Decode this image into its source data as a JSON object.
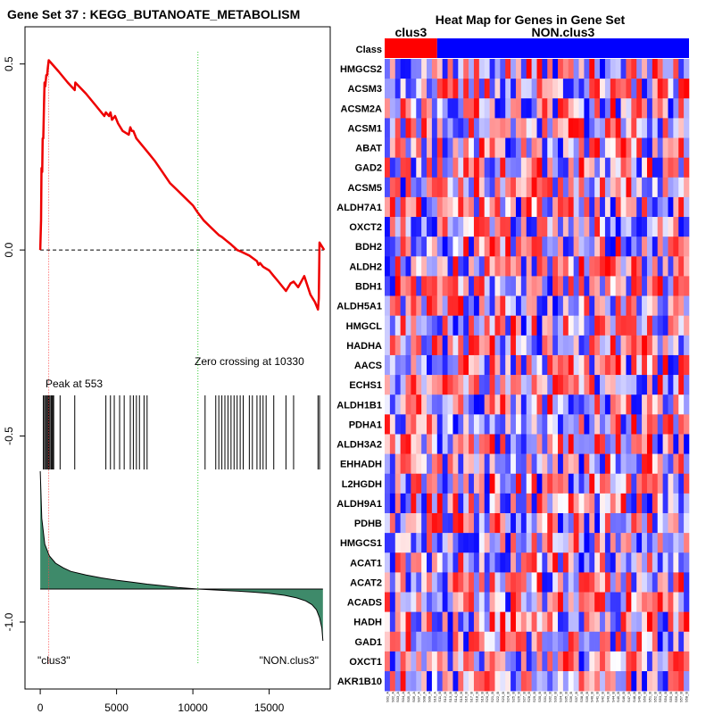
{
  "chart_data": [
    {
      "type": "line",
      "title": "Gene Set  37 : KEGG_BUTANOATE_METABOLISM",
      "xlabel": "",
      "ylabel": "",
      "xlim": [
        -1000,
        19000
      ],
      "ylim": [
        -1.18,
        0.6
      ],
      "x_ticks": [
        0,
        5000,
        10000,
        15000
      ],
      "y_ticks": [
        0.5,
        0.0,
        -0.5,
        -1.0
      ],
      "y_tick_labels": [
        "0.5",
        "0.0",
        "-0.5",
        "-1.0"
      ],
      "peak_label": "Peak at 553",
      "peak_x": 553,
      "zero_cross_label": "Zero crossing at 10330",
      "zero_cross_x": 10330,
      "left_class_label": "\"clus3\"",
      "right_class_label": "\"NON.clus3\"",
      "colors": {
        "es_line": "#ee0000",
        "peak_line": "#ff4444",
        "zero_line": "#33cc33",
        "metric_fill": "#3e8a6a"
      },
      "es_curve": {
        "x": [
          0,
          50,
          80,
          130,
          160,
          200,
          250,
          280,
          330,
          400,
          450,
          500,
          553,
          1200,
          1800,
          2260,
          2300,
          3000,
          3600,
          4200,
          4300,
          4500,
          4600,
          4700,
          4900,
          5100,
          5400,
          5800,
          5900,
          6000,
          6100,
          6300,
          6700,
          7100,
          7500,
          8000,
          8500,
          9000,
          9500,
          10000,
          10330,
          10700,
          11200,
          11700,
          11900,
          12200,
          12500,
          12900,
          13200,
          13700,
          14200,
          14300,
          14400,
          14600,
          15000,
          15300,
          15600,
          15700,
          16100,
          16400,
          16600,
          16900,
          17300,
          17700,
          18000,
          18200,
          18250,
          18300,
          18600
        ],
        "y": [
          0,
          0.08,
          0.22,
          0.21,
          0.3,
          0.3,
          0.4,
          0.45,
          0.44,
          0.47,
          0.47,
          0.49,
          0.51,
          0.48,
          0.45,
          0.43,
          0.45,
          0.42,
          0.39,
          0.36,
          0.37,
          0.36,
          0.37,
          0.35,
          0.36,
          0.34,
          0.32,
          0.31,
          0.33,
          0.32,
          0.32,
          0.3,
          0.28,
          0.26,
          0.24,
          0.21,
          0.18,
          0.16,
          0.14,
          0.12,
          0.1,
          0.08,
          0.06,
          0.04,
          0.035,
          0.025,
          0.015,
          0.0,
          -0.005,
          -0.015,
          -0.03,
          -0.04,
          -0.035,
          -0.045,
          -0.055,
          -0.07,
          -0.085,
          -0.09,
          -0.11,
          -0.09,
          -0.085,
          -0.1,
          -0.07,
          -0.12,
          -0.14,
          -0.16,
          -0.13,
          0.02,
          0.0
        ]
      },
      "hit_positions": [
        200,
        280,
        350,
        420,
        480,
        550,
        620,
        700,
        760,
        820,
        880,
        1300,
        2260,
        4300,
        4600,
        4850,
        5200,
        5500,
        5900,
        6100,
        6300,
        6500,
        6800,
        7000,
        10800,
        11500,
        11700,
        11900,
        12100,
        12300,
        12500,
        12700,
        12900,
        13100,
        13300,
        13700,
        13900,
        14200,
        14400,
        14600,
        14800,
        15300,
        16100,
        16600,
        18200,
        18300
      ],
      "ranked_metric": {
        "x": [
          0,
          100,
          300,
          600,
          1000,
          1500,
          2000,
          3000,
          4000,
          5000,
          6000,
          7000,
          8000,
          9000,
          10330,
          11000,
          12000,
          13000,
          14000,
          15000,
          16000,
          16800,
          17400,
          17800,
          18100,
          18300,
          18450,
          18520
        ],
        "y": [
          1.0,
          0.6,
          0.38,
          0.28,
          0.22,
          0.18,
          0.15,
          0.12,
          0.095,
          0.075,
          0.058,
          0.042,
          0.028,
          0.014,
          0.0,
          -0.01,
          -0.025,
          -0.042,
          -0.06,
          -0.085,
          -0.12,
          -0.17,
          -0.23,
          -0.3,
          -0.4,
          -0.55,
          -0.75,
          -1.0
        ]
      }
    },
    {
      "type": "heatmap",
      "title": "Heat Map for Genes in Gene Set",
      "class_row_label": "Class",
      "classes": [
        {
          "name": "clus3",
          "count": 10,
          "color": "#ff0000"
        },
        {
          "name": "NON.clus3",
          "count": 48,
          "color": "#0000ff"
        }
      ],
      "genes": [
        "HMGCS2",
        "ACSM3",
        "ACSM2A",
        "ACSM1",
        "ABAT",
        "GAD2",
        "ACSM5",
        "ALDH7A1",
        "OXCT2",
        "BDH2",
        "ALDH2",
        "BDH1",
        "ALDH5A1",
        "HMGCL",
        "HADHA",
        "AACS",
        "ECHS1",
        "ALDH1B1",
        "PDHA1",
        "ALDH3A2",
        "EHHADH",
        "L2HGDH",
        "ALDH9A1",
        "PDHB",
        "HMGCS1",
        "ACAT1",
        "ACAT2",
        "ACADS",
        "HADH",
        "GAD1",
        "OXCT1",
        "AKR1B10"
      ],
      "sample_labels": [
        "S01_A",
        "S02_A",
        "S03_A",
        "S04_A",
        "S05_A",
        "S06_A",
        "S07_A",
        "S08_A",
        "S09_A",
        "S10_A",
        "S11_B",
        "S12_B",
        "S13_B",
        "S14_B",
        "S15_B",
        "S16_B",
        "S17_B",
        "S18_B",
        "S19_B",
        "S20_B",
        "S21_B",
        "S22_B",
        "S23_B",
        "S24_B",
        "S25_B",
        "S26_B",
        "S27_B",
        "S28_B",
        "S29_B",
        "S30_B",
        "S31_B",
        "S32_B",
        "S33_B",
        "S34_B",
        "S35_B",
        "S36_B",
        "S37_B",
        "S38_B",
        "S39_B",
        "S40_B",
        "S41_B",
        "S42_B",
        "S43_B",
        "S44_B",
        "S45_B",
        "S46_B",
        "S47_B",
        "S48_B",
        "S49_B",
        "S50_B",
        "S51_B",
        "S52_B",
        "S53_B",
        "S54_B",
        "S55_B",
        "S56_B",
        "S57_B",
        "S58_B"
      ],
      "value_range": [
        -1,
        1
      ],
      "seed": 37
    }
  ]
}
